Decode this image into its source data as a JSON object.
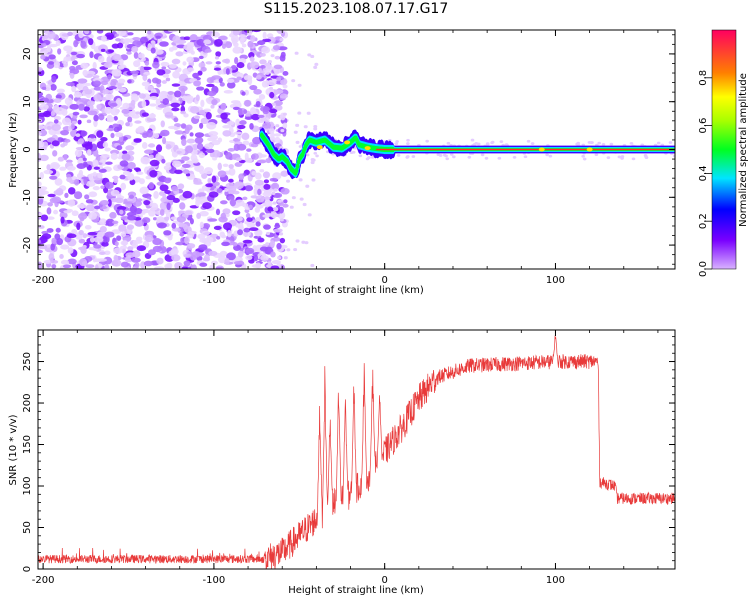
{
  "title": "S115.2023.108.07.17.G17",
  "chart_data": [
    {
      "type": "heatmap",
      "name": "spectrogram",
      "xlabel": "Height of straight line (km)",
      "ylabel": "Frequency (Hz)",
      "xlim": [
        -203,
        170
      ],
      "ylim": [
        -25,
        25
      ],
      "xticks": [
        -200,
        -100,
        0,
        100
      ],
      "xtick_labels": [
        "-200",
        "-100",
        "0",
        "100"
      ],
      "yticks": [
        -20,
        -10,
        0,
        10,
        20
      ],
      "ytick_labels": [
        "-20",
        "-10",
        "0",
        "10",
        "20"
      ],
      "colorbar": {
        "label": "Normalized spectral amplitude",
        "range": [
          0,
          1
        ],
        "ticks": [
          0,
          0.2,
          0.4,
          0.6,
          0.8
        ],
        "tick_labels": [
          "0.0",
          "0.2",
          "0.4",
          "0.6",
          "0.8"
        ]
      },
      "noise_region_x": [
        -203,
        -70
      ],
      "signal_trace": {
        "x": [
          -72,
          -68,
          -65,
          -62,
          -60,
          -57,
          -55,
          -52,
          -50,
          -48,
          -46,
          -44,
          -40,
          -35,
          -30,
          -25,
          -20,
          -17,
          -15,
          -10,
          -5,
          0,
          10,
          50,
          100,
          170
        ],
        "y": [
          3,
          1,
          -1,
          -2,
          -1.5,
          -2.5,
          -4,
          -5,
          -2,
          -1,
          1,
          2,
          1.5,
          2,
          0.5,
          0.3,
          1.5,
          2.5,
          1,
          0.5,
          0.2,
          0,
          0,
          0,
          0,
          0
        ]
      }
    },
    {
      "type": "line",
      "name": "snr",
      "xlabel": "Height of straight line (km)",
      "ylabel": "SNR (10 * v/v)",
      "xlim": [
        -203,
        170
      ],
      "ylim": [
        0,
        288
      ],
      "xticks": [
        -200,
        -100,
        0,
        100
      ],
      "xtick_labels": [
        "-200",
        "-100",
        "0",
        "100"
      ],
      "yticks": [
        0,
        50,
        100,
        150,
        200,
        250
      ],
      "ytick_labels": [
        "0",
        "50",
        "100",
        "150",
        "200",
        "250"
      ],
      "color": "#e83a3a",
      "baseline": {
        "x": [
          -203,
          -70,
          -60,
          -50,
          -40,
          -30,
          -20,
          -10,
          0,
          10,
          20,
          30,
          50,
          100,
          125,
          126,
          135,
          136,
          170
        ],
        "y": [
          12,
          12,
          20,
          40,
          60,
          80,
          90,
          110,
          140,
          170,
          205,
          230,
          245,
          250,
          250,
          105,
          100,
          85,
          85
        ]
      },
      "spikes": {
        "x": [
          -38,
          -35,
          -32,
          -27,
          -23,
          -18,
          -12,
          -7,
          -3,
          100
        ],
        "y": [
          215,
          255,
          200,
          235,
          225,
          240,
          255,
          255,
          230,
          288
        ]
      }
    }
  ]
}
